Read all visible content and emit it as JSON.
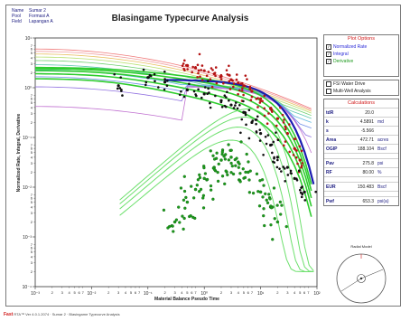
{
  "well_info": {
    "rows": [
      {
        "key": "Name",
        "value": "Sumar 2"
      },
      {
        "key": "Pool",
        "value": "Formasi A"
      },
      {
        "key": "Field",
        "value": "Lapangan A"
      }
    ]
  },
  "plot_options": {
    "title": "Plot Options",
    "items": [
      {
        "label": "Normalized Rate",
        "checked": true,
        "color": "#2b2bd8"
      },
      {
        "label": "Integral",
        "checked": true,
        "color": "#2b2bd8"
      },
      {
        "label": "Derivative",
        "checked": true,
        "color": "#1d9a1d"
      }
    ],
    "extra": [
      {
        "label": "FSI Water Drive",
        "checked": false
      },
      {
        "label": "Multi-Well Analysis",
        "checked": false
      }
    ]
  },
  "calculations": {
    "title": "Calculations",
    "rows": [
      {
        "key": "tdR",
        "value": "20.0",
        "unit": ""
      },
      {
        "key": "k",
        "value": "4.5891",
        "unit": "md"
      },
      {
        "key": "s",
        "value": "-5.566",
        "unit": ""
      },
      {
        "key": "Area",
        "value": "472.71",
        "unit": "acres"
      },
      {
        "key": "OGIP",
        "value": "188.104",
        "unit": "Bscf"
      },
      {
        "key": "gap",
        "value": "",
        "unit": ""
      },
      {
        "key": "Pav",
        "value": "275.8",
        "unit": "psi"
      },
      {
        "key": "RF",
        "value": "80.00",
        "unit": "%"
      },
      {
        "key": "gap",
        "value": "",
        "unit": ""
      },
      {
        "key": "EUR",
        "value": "150.483",
        "unit": "Bscf"
      },
      {
        "key": "gap",
        "value": "",
        "unit": ""
      },
      {
        "key": "Pwf",
        "value": "653.3",
        "unit": "psi(a)"
      }
    ]
  },
  "radial_model": {
    "title": "Radial Model"
  },
  "footer": {
    "brand": "Fast",
    "text": "RTA™ Ver 4.0.1.2074 · Sumar 2 · Blasingame Typecurve Analysis"
  },
  "chart_data": {
    "type": "scatter",
    "title": "Blasingame Typecurve Analysis",
    "xlabel": "Material Balance Pseudo Time",
    "ylabel": "Normalized Rate, Integral, Derivative",
    "x_scale": "log",
    "y_scale": "log",
    "xlim": [
      0.001,
      100
    ],
    "ylim": [
      0.0001,
      10
    ],
    "grid": false,
    "legend": "none",
    "x_decade_labels": [
      "10⁻³",
      "10⁻²",
      "10⁻¹",
      "10⁰",
      "10¹",
      "10²"
    ],
    "y_decade_labels": [
      "10¹",
      "10⁰",
      "10⁻¹",
      "10⁻²",
      "10⁻³",
      "10⁻⁴"
    ],
    "minor_tick_labels": [
      "2",
      "3",
      "4",
      "5",
      "6",
      "7"
    ],
    "series": [
      {
        "name": "Normalized Rate",
        "color": "#b41414",
        "values": [
          [
            0.5,
            2.8
          ],
          [
            0.7,
            2.5
          ],
          [
            1.0,
            2.2
          ],
          [
            1.5,
            1.9
          ],
          [
            2.0,
            1.7
          ],
          [
            3.0,
            1.45
          ],
          [
            4.0,
            1.25
          ],
          [
            5.0,
            1.1
          ],
          [
            7.0,
            0.85
          ],
          [
            10,
            0.6
          ],
          [
            15,
            0.38
          ],
          [
            20,
            0.24
          ],
          [
            30,
            0.12
          ],
          [
            40,
            0.06
          ],
          [
            50,
            0.035
          ]
        ]
      },
      {
        "name": "Integral",
        "color": "#101010",
        "values": [
          [
            0.03,
            1.1
          ],
          [
            0.1,
            1.6
          ],
          [
            0.2,
            1.3
          ],
          [
            0.5,
            0.9
          ],
          [
            1.0,
            0.75
          ],
          [
            2.0,
            0.55
          ],
          [
            3.0,
            0.45
          ],
          [
            5.0,
            0.32
          ],
          [
            7.0,
            0.2
          ],
          [
            10,
            0.12
          ],
          [
            15,
            0.07
          ],
          [
            20,
            0.04
          ],
          [
            30,
            0.025
          ],
          [
            40,
            0.015
          ],
          [
            60,
            0.008
          ]
        ]
      },
      {
        "name": "Derivative",
        "color": "#1d9a1d",
        "values": [
          [
            0.3,
            0.002
          ],
          [
            0.5,
            0.005
          ],
          [
            0.7,
            0.009
          ],
          [
            1.0,
            0.015
          ],
          [
            1.5,
            0.025
          ],
          [
            2.0,
            0.035
          ],
          [
            3.0,
            0.04
          ],
          [
            4.0,
            0.032
          ],
          [
            6.0,
            0.02
          ],
          [
            10,
            0.008
          ],
          [
            15,
            0.004
          ],
          [
            20,
            0.002
          ]
        ]
      }
    ]
  }
}
